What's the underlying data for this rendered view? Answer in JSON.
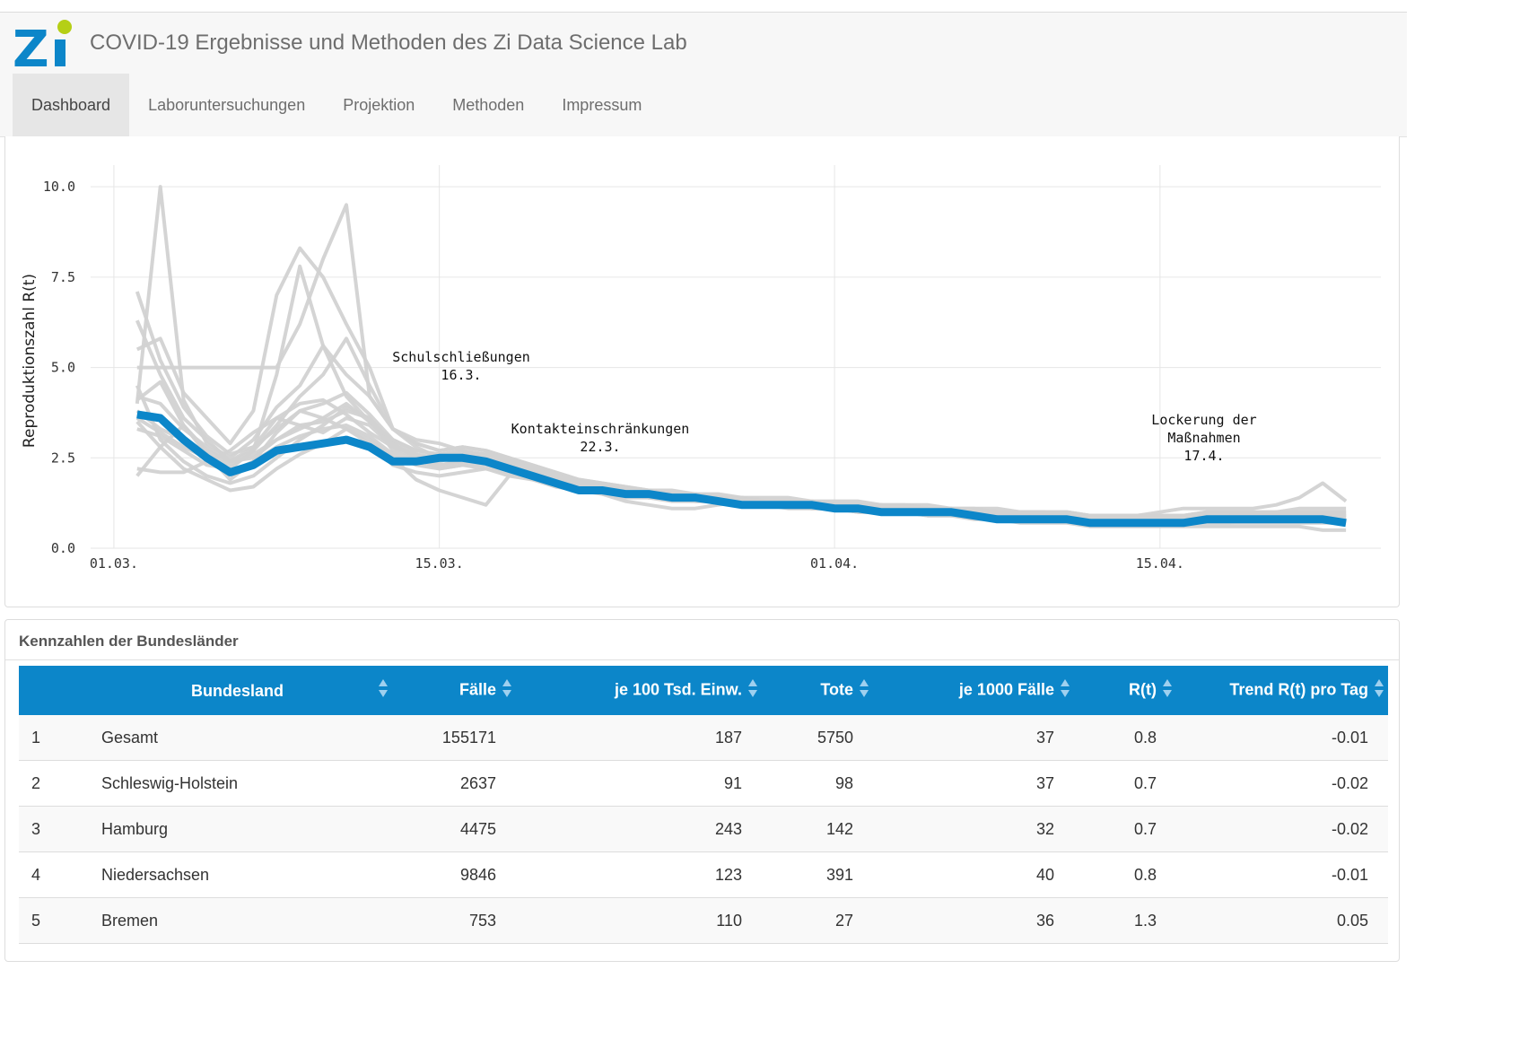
{
  "app": {
    "title": "COVID-19 Ergebnisse und Methoden des Zi Data Science Lab"
  },
  "colors": {
    "accent": "#0c86c9",
    "logo_green": "#b5cf16",
    "grey_lines": "#d2d2d2"
  },
  "tabs": [
    {
      "label": "Dashboard",
      "active": true
    },
    {
      "label": "Laboruntersuchungen",
      "active": false
    },
    {
      "label": "Projektion",
      "active": false
    },
    {
      "label": "Methoden",
      "active": false
    },
    {
      "label": "Impressum",
      "active": false
    }
  ],
  "chart_data": {
    "type": "line",
    "ylabel": "Reproduktionszahl R(t)",
    "xlabel": "",
    "x_ticks": [
      "01.03.",
      "15.03.",
      "01.04.",
      "15.04."
    ],
    "x_tick_days": [
      0,
      14,
      31,
      45
    ],
    "y_ticks": [
      "0.0",
      "2.5",
      "5.0",
      "7.5",
      "10.0"
    ],
    "ylim": [
      0,
      10.5
    ],
    "xlim_days": [
      -1,
      54.5
    ],
    "x_days": [
      1,
      2,
      3,
      4,
      5,
      6,
      7,
      8,
      9,
      10,
      11,
      12,
      13,
      14,
      15,
      16,
      17,
      18,
      19,
      20,
      21,
      22,
      23,
      24,
      25,
      26,
      27,
      28,
      29,
      30,
      31,
      32,
      33,
      34,
      35,
      36,
      37,
      38,
      39,
      40,
      41,
      42,
      43,
      44,
      45,
      46,
      47,
      48,
      49,
      50,
      51,
      52,
      53
    ],
    "annotations": [
      {
        "lines": [
          "Schulschließungen",
          "16.3."
        ],
        "day": 15
      },
      {
        "lines": [
          "Kontakteinschränkungen",
          "22.3."
        ],
        "day": 21
      },
      {
        "lines": [
          "Lockerung der",
          "Maßnahmen",
          "17.4."
        ],
        "day": 47
      }
    ],
    "series": [
      {
        "highlight": true,
        "color": "#0c86c9",
        "values": [
          3.7,
          3.6,
          3.0,
          2.5,
          2.1,
          2.3,
          2.7,
          2.8,
          2.9,
          3.0,
          2.8,
          2.4,
          2.4,
          2.5,
          2.5,
          2.4,
          2.2,
          2.0,
          1.8,
          1.6,
          1.6,
          1.5,
          1.5,
          1.4,
          1.4,
          1.3,
          1.2,
          1.2,
          1.2,
          1.2,
          1.1,
          1.1,
          1.0,
          1.0,
          1.0,
          1.0,
          0.9,
          0.8,
          0.8,
          0.8,
          0.8,
          0.7,
          0.7,
          0.7,
          0.7,
          0.7,
          0.8,
          0.8,
          0.8,
          0.8,
          0.8,
          0.8,
          0.7
        ]
      },
      {
        "values": [
          7.1,
          5.2,
          3.9,
          3.1,
          2.6,
          2.8,
          3.6,
          4.0,
          4.1,
          3.7,
          3.2,
          2.8,
          2.5,
          2.4,
          2.6,
          2.5,
          2.3,
          2.1,
          1.9,
          1.7,
          1.6,
          1.5,
          1.4,
          1.4,
          1.3,
          1.3,
          1.2,
          1.2,
          1.2,
          1.1,
          1.1,
          1.0,
          1.0,
          1.0,
          1.0,
          0.9,
          0.9,
          0.8,
          0.8,
          0.8,
          0.8,
          0.7,
          0.7,
          0.7,
          0.7,
          0.7,
          0.7,
          0.7,
          0.8,
          0.8,
          0.8,
          0.8,
          0.8
        ]
      },
      {
        "values": [
          6.3,
          4.8,
          3.6,
          3.0,
          2.4,
          2.7,
          4.8,
          7.8,
          5.6,
          4.2,
          3.5,
          2.9,
          2.6,
          2.3,
          2.4,
          2.4,
          2.3,
          2.1,
          1.9,
          1.7,
          1.6,
          1.6,
          1.5,
          1.4,
          1.4,
          1.3,
          1.3,
          1.2,
          1.2,
          1.2,
          1.1,
          1.1,
          1.1,
          1.0,
          1.0,
          1.0,
          0.9,
          0.9,
          0.9,
          0.8,
          0.8,
          0.8,
          0.8,
          0.8,
          0.8,
          0.8,
          0.8,
          0.8,
          0.9,
          0.9,
          0.9,
          0.9,
          0.9
        ]
      },
      {
        "values": [
          5.0,
          5.0,
          5.0,
          5.0,
          5.0,
          5.0,
          5.0,
          6.2,
          8.0,
          9.5,
          4.2,
          3.3,
          2.8,
          2.5,
          2.4,
          2.4,
          2.3,
          2.2,
          2.0,
          1.8,
          1.7,
          1.6,
          1.5,
          1.4,
          1.4,
          1.3,
          1.3,
          1.3,
          1.2,
          1.2,
          1.2,
          1.1,
          1.1,
          1.1,
          1.0,
          1.0,
          1.0,
          0.9,
          0.9,
          0.9,
          0.9,
          0.8,
          0.8,
          0.8,
          0.8,
          0.8,
          0.8,
          0.9,
          0.9,
          0.9,
          0.9,
          1.0,
          1.0
        ]
      },
      {
        "values": [
          5.5,
          5.8,
          4.3,
          3.6,
          2.9,
          3.8,
          7.0,
          8.3,
          7.5,
          6.2,
          5.0,
          3.3,
          2.9,
          2.7,
          2.8,
          2.7,
          2.5,
          2.2,
          2.0,
          1.8,
          1.7,
          1.6,
          1.6,
          1.5,
          1.5,
          1.4,
          1.4,
          1.3,
          1.3,
          1.3,
          1.2,
          1.2,
          1.1,
          1.1,
          1.1,
          1.0,
          1.0,
          1.0,
          0.9,
          0.9,
          0.9,
          0.9,
          0.8,
          0.8,
          0.8,
          0.8,
          0.8,
          0.8,
          0.8,
          0.8,
          0.9,
          0.9,
          0.9
        ]
      },
      {
        "values": [
          4.1,
          4.6,
          3.4,
          2.6,
          1.9,
          2.4,
          3.2,
          3.8,
          3.6,
          3.3,
          2.9,
          2.3,
          2.1,
          2.0,
          2.1,
          2.2,
          2.0,
          1.9,
          1.7,
          1.6,
          1.5,
          1.4,
          1.4,
          1.3,
          1.3,
          1.3,
          1.2,
          1.2,
          1.1,
          1.1,
          1.1,
          1.0,
          1.0,
          1.0,
          0.9,
          0.9,
          0.9,
          0.8,
          0.8,
          0.8,
          0.8,
          0.7,
          0.7,
          0.7,
          0.7,
          0.7,
          0.7,
          0.7,
          0.7,
          0.7,
          0.7,
          0.7,
          0.7
        ]
      },
      {
        "values": [
          3.5,
          2.8,
          2.2,
          1.9,
          1.6,
          1.7,
          2.2,
          2.6,
          2.9,
          3.3,
          3.0,
          2.5,
          1.9,
          1.6,
          1.4,
          1.2,
          2.0,
          2.2,
          2.0,
          1.7,
          1.5,
          1.3,
          1.2,
          1.1,
          1.1,
          1.2,
          1.3,
          1.3,
          1.3,
          1.2,
          1.1,
          1.0,
          1.0,
          1.0,
          0.9,
          0.9,
          0.8,
          0.8,
          0.7,
          0.7,
          0.7,
          0.6,
          0.6,
          0.6,
          0.6,
          0.6,
          0.6,
          0.6,
          0.6,
          0.6,
          0.6,
          0.5,
          0.5
        ]
      },
      {
        "values": [
          4.5,
          3.0,
          2.4,
          2.0,
          1.8,
          2.0,
          2.5,
          3.0,
          3.4,
          3.9,
          3.6,
          2.9,
          2.5,
          2.2,
          2.3,
          2.2,
          2.1,
          1.9,
          1.8,
          1.7,
          1.6,
          1.6,
          1.5,
          1.5,
          1.4,
          1.4,
          1.3,
          1.3,
          1.3,
          1.2,
          1.2,
          1.2,
          1.2,
          1.1,
          1.1,
          1.1,
          1.0,
          1.0,
          1.0,
          1.0,
          1.0,
          0.9,
          0.9,
          0.9,
          0.9,
          0.9,
          0.9,
          0.9,
          0.9,
          1.0,
          1.0,
          1.0,
          1.0
        ]
      },
      {
        "values": [
          3.3,
          3.1,
          2.7,
          2.3,
          2.2,
          2.7,
          3.4,
          4.2,
          4.8,
          5.8,
          4.5,
          3.3,
          3.0,
          2.9,
          2.7,
          2.5,
          2.3,
          2.1,
          1.9,
          1.8,
          1.7,
          1.6,
          1.6,
          1.5,
          1.5,
          1.4,
          1.4,
          1.3,
          1.3,
          1.3,
          1.2,
          1.2,
          1.2,
          1.1,
          1.1,
          1.1,
          1.0,
          1.0,
          1.0,
          1.0,
          0.9,
          0.9,
          0.9,
          0.9,
          0.9,
          0.9,
          0.9,
          0.9,
          0.9,
          0.9,
          0.9,
          0.9,
          0.9
        ]
      },
      {
        "values": [
          2.0,
          2.8,
          3.4,
          2.7,
          2.4,
          2.5,
          3.0,
          3.4,
          3.5,
          3.8,
          3.6,
          2.7,
          2.4,
          2.3,
          2.4,
          2.4,
          2.2,
          2.0,
          1.8,
          1.6,
          1.6,
          1.5,
          1.4,
          1.4,
          1.3,
          1.3,
          1.2,
          1.2,
          1.2,
          1.1,
          1.1,
          1.1,
          1.0,
          1.0,
          1.0,
          1.0,
          0.9,
          0.9,
          0.9,
          0.9,
          0.8,
          0.8,
          0.8,
          0.8,
          0.8,
          0.8,
          0.8,
          0.8,
          0.8,
          0.8,
          0.8,
          0.8,
          0.8
        ]
      },
      {
        "values": [
          2.2,
          2.1,
          2.1,
          2.4,
          2.7,
          3.2,
          3.6,
          3.4,
          3.2,
          3.6,
          3.4,
          2.8,
          2.6,
          2.5,
          2.6,
          2.6,
          2.5,
          2.3,
          2.1,
          1.9,
          1.8,
          1.7,
          1.6,
          1.6,
          1.5,
          1.5,
          1.4,
          1.4,
          1.4,
          1.3,
          1.3,
          1.3,
          1.2,
          1.2,
          1.2,
          1.1,
          1.1,
          1.1,
          1.0,
          1.0,
          1.0,
          0.9,
          0.9,
          0.9,
          0.9,
          0.9,
          1.0,
          1.0,
          1.0,
          1.0,
          1.1,
          1.1,
          1.1
        ]
      },
      {
        "values": [
          3.8,
          3.3,
          3.0,
          2.6,
          2.3,
          2.6,
          3.0,
          3.3,
          3.6,
          4.0,
          3.5,
          3.0,
          2.7,
          2.6,
          2.7,
          2.6,
          2.4,
          2.2,
          2.0,
          1.8,
          1.7,
          1.6,
          1.5,
          1.5,
          1.4,
          1.4,
          1.3,
          1.3,
          1.3,
          1.2,
          1.2,
          1.2,
          1.1,
          1.1,
          1.1,
          1.0,
          1.0,
          1.0,
          1.0,
          0.9,
          0.9,
          0.9,
          0.9,
          0.9,
          1.0,
          1.1,
          1.1,
          1.1,
          1.1,
          1.2,
          1.4,
          1.8,
          1.3
        ]
      },
      {
        "values": [
          4.0,
          10.0,
          4.1,
          2.9,
          2.5,
          3.0,
          3.9,
          4.5,
          5.6,
          4.8,
          4.2,
          3.3,
          2.9,
          2.7,
          2.8,
          2.7,
          2.5,
          2.3,
          2.1,
          1.9,
          1.8,
          1.7,
          1.6,
          1.5,
          1.5,
          1.4,
          1.4,
          1.3,
          1.3,
          1.3,
          1.2,
          1.2,
          1.2,
          1.1,
          1.1,
          1.1,
          1.0,
          1.0,
          1.0,
          1.0,
          0.9,
          0.9,
          0.9,
          0.9,
          0.9,
          0.9,
          1.0,
          1.0,
          1.0,
          1.0,
          1.0,
          1.0,
          1.0
        ]
      },
      {
        "values": [
          3.6,
          3.2,
          2.8,
          2.5,
          2.1,
          2.4,
          2.8,
          3.1,
          3.3,
          3.4,
          3.1,
          2.6,
          2.3,
          2.2,
          2.3,
          2.3,
          2.2,
          2.0,
          1.8,
          1.7,
          1.6,
          1.5,
          1.4,
          1.4,
          1.3,
          1.3,
          1.2,
          1.2,
          1.2,
          1.1,
          1.1,
          1.1,
          1.0,
          1.0,
          1.0,
          1.0,
          0.9,
          0.9,
          0.9,
          0.8,
          0.8,
          0.8,
          0.8,
          0.8,
          0.8,
          0.8,
          0.8,
          0.8,
          0.8,
          0.8,
          0.8,
          0.8,
          0.7
        ]
      },
      {
        "values": [
          4.2,
          4.0,
          3.3,
          2.8,
          2.4,
          2.8,
          3.3,
          3.8,
          4.0,
          4.3,
          3.7,
          3.0,
          2.7,
          2.6,
          2.6,
          2.6,
          2.4,
          2.2,
          2.0,
          1.8,
          1.7,
          1.6,
          1.6,
          1.5,
          1.5,
          1.4,
          1.4,
          1.3,
          1.3,
          1.3,
          1.2,
          1.2,
          1.2,
          1.2,
          1.1,
          1.1,
          1.1,
          1.0,
          1.0,
          1.0,
          1.0,
          0.9,
          0.9,
          0.9,
          0.9,
          0.9,
          0.9,
          0.9,
          0.9,
          0.9,
          0.9,
          0.9,
          0.9
        ]
      }
    ]
  },
  "table": {
    "title": "Kennzahlen der Bundesländer",
    "columns": [
      "",
      "Bundesland",
      "Fälle",
      "je 100 Tsd. Einw.",
      "Tote",
      "je 1000 Fälle",
      "R(t)",
      "Trend R(t) pro Tag"
    ],
    "rows": [
      [
        "1",
        "Gesamt",
        "155171",
        "187",
        "5750",
        "37",
        "0.8",
        "-0.01"
      ],
      [
        "2",
        "Schleswig-Holstein",
        "2637",
        "91",
        "98",
        "37",
        "0.7",
        "-0.02"
      ],
      [
        "3",
        "Hamburg",
        "4475",
        "243",
        "142",
        "32",
        "0.7",
        "-0.02"
      ],
      [
        "4",
        "Niedersachsen",
        "9846",
        "123",
        "391",
        "40",
        "0.8",
        "-0.01"
      ],
      [
        "5",
        "Bremen",
        "753",
        "110",
        "27",
        "36",
        "1.3",
        "0.05"
      ]
    ]
  }
}
